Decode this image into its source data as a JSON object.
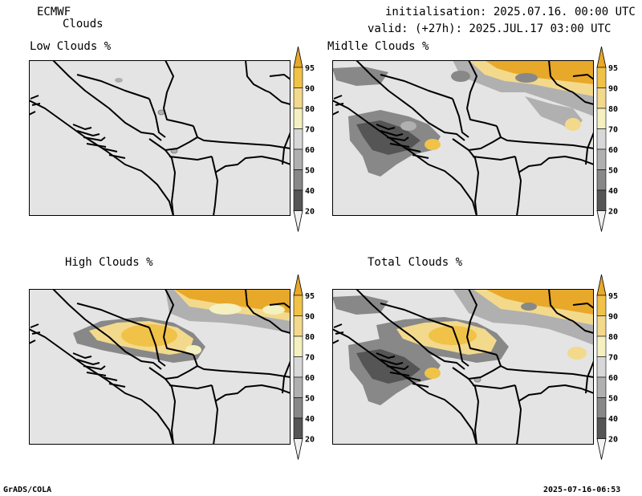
{
  "header": {
    "model": "ECMWF",
    "product": "Clouds",
    "initialisation": "initialisation: 2025.07.16. 00:00 UTC",
    "valid": "valid: (+27h): 2025.JUL.17 03:00 UTC"
  },
  "panels": [
    {
      "title": "Low Clouds %"
    },
    {
      "title": "Midlle Clouds %"
    },
    {
      "title": "High Clouds %"
    },
    {
      "title": "Total Clouds %"
    }
  ],
  "colorbar": {
    "levels": [
      "95",
      "90",
      "80",
      "70",
      "60",
      "50",
      "40",
      "20"
    ],
    "colors": [
      "#e8a82a",
      "#f0c248",
      "#f3d98c",
      "#f4f0c0",
      "#d8d8d8",
      "#b0b0b0",
      "#888888",
      "#555555",
      "#f2f2f2"
    ]
  },
  "footer": {
    "left": "GrADS/COLA",
    "right": "2025-07-16-06:53"
  }
}
